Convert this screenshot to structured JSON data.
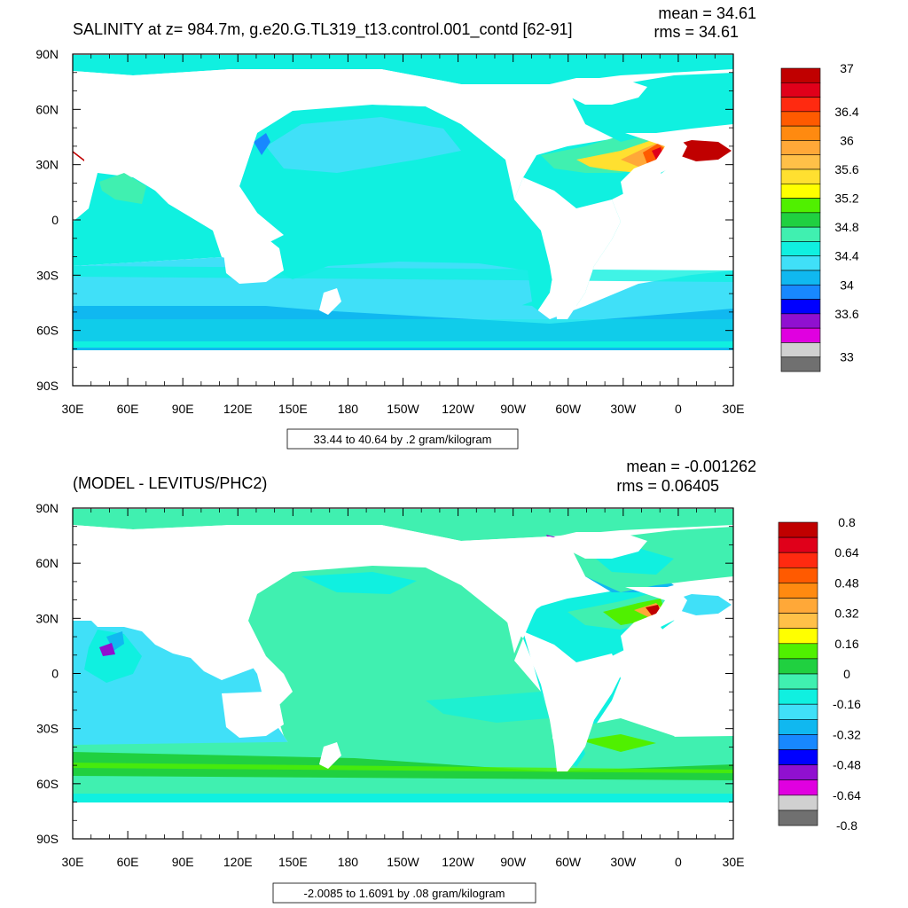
{
  "chart_data": [
    {
      "type": "heatmap",
      "title": "SALINITY at z= 984.7m, g.e20.G.TL319_t13.control.001_contd [62-91]",
      "mean_text": "mean = 34.61",
      "rms_text": "rms = 34.61",
      "footer": "33.44 to 40.64 by .2 gram/kilogram",
      "x_ticks": [
        "30E",
        "60E",
        "90E",
        "120E",
        "150E",
        "180",
        "150W",
        "120W",
        "90W",
        "60W",
        "30W",
        "0",
        "30E"
      ],
      "y_ticks": [
        "90N",
        "60N",
        "30N",
        "0",
        "30S",
        "60S",
        "90S"
      ],
      "xlim": [
        30,
        390
      ],
      "ylim": [
        -90,
        90
      ],
      "colorbar": {
        "colors": [
          "#c00000",
          "#e0001a",
          "#ff2a10",
          "#ff5a00",
          "#ff8a10",
          "#ffa838",
          "#ffc048",
          "#ffe030",
          "#ffff00",
          "#50f000",
          "#20d040",
          "#40f0b0",
          "#10f0e0",
          "#40e0f8",
          "#10b8f0",
          "#1888ff",
          "#0000ff",
          "#9010d0",
          "#e000e0",
          "#d0d0d0",
          "#707070"
        ],
        "labels": [
          "37",
          "36.4",
          "36",
          "35.6",
          "35.2",
          "34.8",
          "34.4",
          "34",
          "33.6",
          "33"
        ],
        "label_positions": [
          0,
          3,
          5,
          7,
          9,
          11,
          13,
          15,
          17,
          20
        ]
      },
      "background_color": "#10f0e0"
    },
    {
      "type": "heatmap",
      "title": "(MODEL - LEVITUS/PHC2)",
      "mean_text": "mean = -0.001262",
      "rms_text": "rms = 0.06405",
      "footer": "-2.0085 to 1.6091 by .08 gram/kilogram",
      "x_ticks": [
        "30E",
        "60E",
        "90E",
        "120E",
        "150E",
        "180",
        "150W",
        "120W",
        "90W",
        "60W",
        "30W",
        "0",
        "30E"
      ],
      "y_ticks": [
        "90N",
        "60N",
        "30N",
        "0",
        "30S",
        "60S",
        "90S"
      ],
      "xlim": [
        30,
        390
      ],
      "ylim": [
        -90,
        90
      ],
      "colorbar": {
        "colors": [
          "#c00000",
          "#e0001a",
          "#ff2a10",
          "#ff5a00",
          "#ff8a10",
          "#ffa838",
          "#ffc048",
          "#ffff00",
          "#50f000",
          "#20d040",
          "#40f0b0",
          "#10f0e0",
          "#40e0f8",
          "#10b8f0",
          "#1888ff",
          "#0000ff",
          "#9010d0",
          "#e000e0",
          "#d0d0d0",
          "#707070"
        ],
        "labels": [
          "0.8",
          "0.64",
          "0.48",
          "0.32",
          "0.16",
          "0",
          "-0.16",
          "-0.32",
          "-0.48",
          "-0.64",
          "-0.8"
        ],
        "label_positions": [
          0,
          2,
          4,
          6,
          8,
          10,
          12,
          14,
          16,
          18,
          20
        ]
      },
      "background_color": "#40f0b0"
    }
  ]
}
